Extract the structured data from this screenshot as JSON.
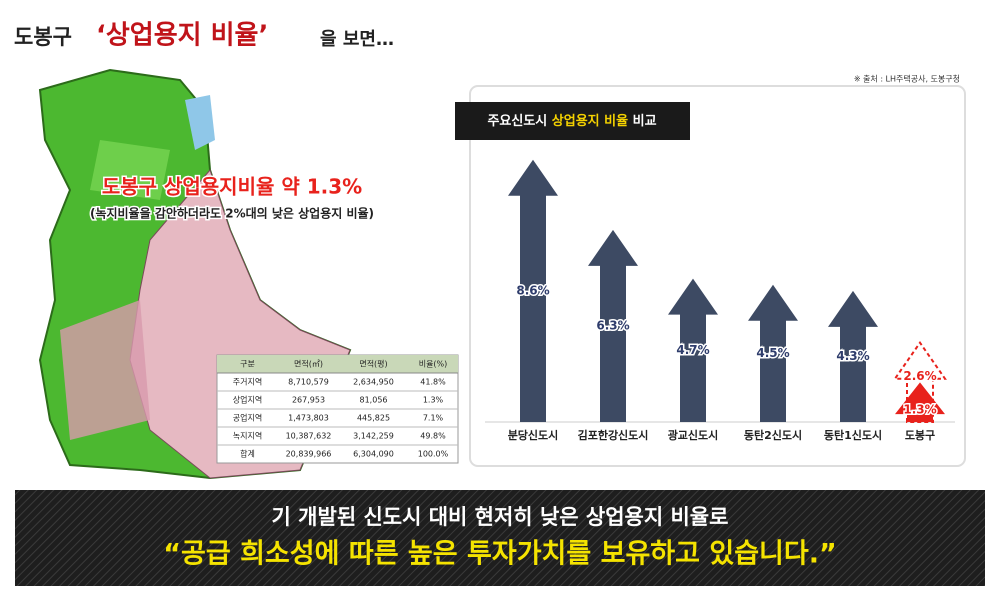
{
  "header": {
    "title_prefix": "도봉구",
    "title_highlight": "‘상업용지 비율’",
    "title_suffix": "을 보면…",
    "source": "※ 출처 : LH주택공사, 도봉구청"
  },
  "map": {
    "headline": "도봉구 상업용지비율 약 1.3%",
    "subline": "(녹지비율을 감안하더라도 2%대의 낮은 상업용지 비율)"
  },
  "table": {
    "columns": [
      "구분",
      "면적(㎡)",
      "면적(평)",
      "비율(%)"
    ],
    "rows": [
      [
        "주거지역",
        "8,710,579",
        "2,634,950",
        "41.8%"
      ],
      [
        "상업지역",
        "267,953",
        "81,056",
        "1.3%"
      ],
      [
        "공업지역",
        "1,473,803",
        "445,825",
        "7.1%"
      ],
      [
        "녹지지역",
        "10,387,632",
        "3,142,259",
        "49.8%"
      ],
      [
        "합계",
        "20,839,966",
        "6,304,090",
        "100.0%"
      ]
    ]
  },
  "chart_data": {
    "type": "arrow",
    "title_parts": [
      "주요신도시 ",
      "상업용지 비율",
      " 비교"
    ],
    "categories": [
      "분당신도시",
      "김포한강신도시",
      "광교신도시",
      "동탄2신도시",
      "동탄1신도시",
      "도봉구"
    ],
    "values": [
      8.6,
      6.3,
      4.7,
      4.5,
      4.3,
      1.3
    ],
    "value_labels": [
      "8.6%",
      "6.3%",
      "4.7%",
      "4.5%",
      "4.3%",
      "1.3%"
    ],
    "dashed_values": [
      null,
      null,
      null,
      null,
      null,
      2.6
    ],
    "dashed_value_labels": [
      null,
      null,
      null,
      null,
      null,
      "2.6%"
    ],
    "color": "#3d4a63",
    "highlight_color": "#e8221c"
  },
  "banner": {
    "line1": "기 개발된 신도시 대비 현저히 낮은 상업용지 비율로",
    "line2": "“공급 희소성에 따른 높은 투자가치를 보유하고 있습니다.”"
  }
}
